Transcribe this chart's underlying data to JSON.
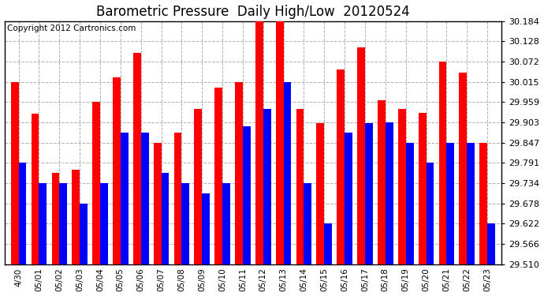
{
  "title": "Barometric Pressure  Daily High/Low  20120524",
  "copyright": "Copyright 2012 Cartronics.com",
  "categories": [
    "4/30",
    "05/01",
    "05/02",
    "05/03",
    "05/04",
    "05/05",
    "05/06",
    "05/07",
    "05/08",
    "05/09",
    "05/10",
    "05/11",
    "05/12",
    "05/13",
    "05/14",
    "05/15",
    "05/16",
    "05/17",
    "05/18",
    "05/19",
    "05/20",
    "05/21",
    "05/22",
    "05/23"
  ],
  "highs": [
    30.015,
    29.928,
    29.762,
    29.772,
    29.959,
    30.028,
    30.095,
    29.847,
    29.875,
    29.94,
    30.0,
    30.015,
    30.184,
    30.184,
    29.94,
    29.9,
    30.05,
    30.11,
    29.965,
    29.94,
    29.93,
    30.072,
    30.04,
    29.847
  ],
  "lows": [
    29.791,
    29.734,
    29.734,
    29.678,
    29.734,
    29.875,
    29.875,
    29.762,
    29.734,
    29.706,
    29.734,
    29.891,
    29.94,
    30.015,
    29.734,
    29.622,
    29.875,
    29.9,
    29.903,
    29.847,
    29.791,
    29.847,
    29.847,
    29.622
  ],
  "high_color": "#ff0000",
  "low_color": "#0000ff",
  "bg_color": "#ffffff",
  "plot_bg_color": "#ffffff",
  "grid_color": "#b0b0b0",
  "title_fontsize": 12,
  "copyright_fontsize": 7.5,
  "ymin": 29.51,
  "ymax": 30.184,
  "yticks": [
    29.51,
    29.566,
    29.622,
    29.678,
    29.734,
    29.791,
    29.847,
    29.903,
    29.959,
    30.015,
    30.072,
    30.128,
    30.184
  ]
}
